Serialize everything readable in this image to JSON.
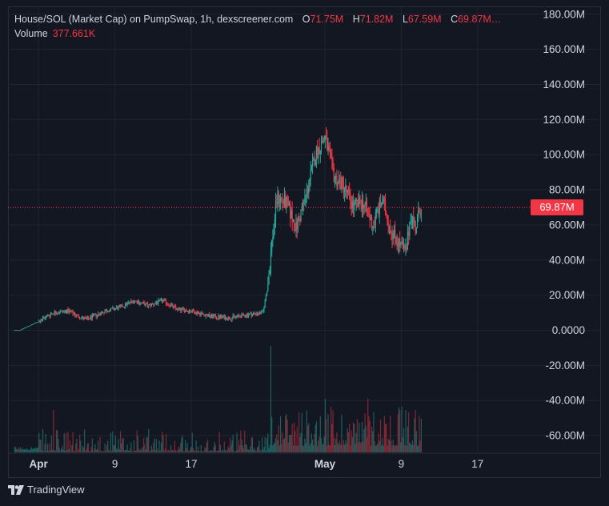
{
  "legend": {
    "symbol": "House/SOL (Market Cap) on PumpSwap, 1h, dexscreener.com",
    "o_label": "O",
    "o_value": "71.75M",
    "h_label": "H",
    "h_value": "71.82M",
    "l_label": "L",
    "l_value": "67.59M",
    "c_label": "C",
    "c_value": "69.87M…",
    "volume_label": "Volume",
    "volume_value": "377.661K"
  },
  "price_tag": "69.87M",
  "footer": {
    "brand": "TradingView"
  },
  "colors": {
    "up": "#26a69a",
    "down": "#f23645",
    "grid": "#1f2430",
    "bg": "#131722"
  },
  "chart_data": {
    "type": "candlestick",
    "title": "House/SOL (Market Cap) on PumpSwap, 1h, dexscreener.com",
    "y_unit": "M",
    "y_ticks": [
      "180.00M",
      "160.00M",
      "140.00M",
      "120.00M",
      "100.00M",
      "80.00M",
      "60.00M",
      "40.00M",
      "20.00M",
      "0.0000",
      "-20.00M",
      "-40.00M",
      "-60.00M"
    ],
    "y_tick_values": [
      180,
      160,
      140,
      120,
      100,
      80,
      60,
      40,
      20,
      0,
      -20,
      -40,
      -60
    ],
    "ylim": [
      -70,
      184
    ],
    "x_ticks": [
      {
        "label": "Apr",
        "day": 1,
        "bold": true
      },
      {
        "label": "9",
        "day": 9,
        "bold": false
      },
      {
        "label": "17",
        "day": 17,
        "bold": false
      },
      {
        "label": "May",
        "day": 31,
        "bold": true
      },
      {
        "label": "9",
        "day": 39,
        "bold": false
      },
      {
        "label": "17",
        "day": 47,
        "bold": false
      }
    ],
    "xlim_days": [
      -2.2,
      52.3
    ],
    "last_close": 69.87,
    "series_days": [
      -1,
      1,
      2.5,
      4,
      6,
      8,
      9.5,
      11,
      12.5,
      14,
      15.5,
      17,
      19,
      21,
      23,
      24.5,
      25,
      25.5,
      26,
      27,
      28,
      29,
      30,
      31,
      32,
      33,
      34,
      35,
      36,
      37,
      38,
      39,
      39.5,
      40,
      40.5,
      41
    ],
    "series_values": [
      0,
      5,
      10,
      11,
      6,
      11,
      13,
      17,
      14,
      17,
      12,
      11,
      8,
      7,
      9,
      10,
      25,
      53,
      76,
      72,
      58,
      76,
      100,
      110,
      87,
      82,
      70,
      73,
      60,
      74,
      56,
      48,
      44,
      67,
      58,
      70
    ],
    "volume_spikes": [
      {
        "day": 25.3,
        "value": 0.95
      },
      {
        "day": 31,
        "value": 0.48
      },
      {
        "day": 35.5,
        "value": 0.48
      },
      {
        "day": 2.6,
        "value": 0.38
      }
    ]
  }
}
